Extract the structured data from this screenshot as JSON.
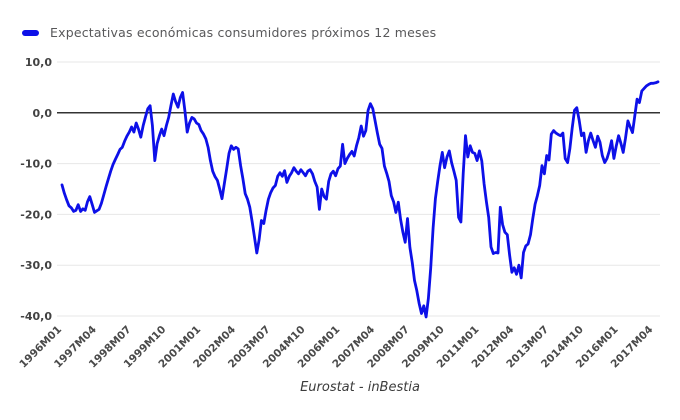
{
  "chart_data": {
    "type": "line",
    "legend": "Expectativas económicas consumidores próximos 12 meses",
    "source_label": "Eurostat - inBestia",
    "grid": true,
    "legend_position": "top-left",
    "colors": {
      "line": "#0d10e8",
      "zero_line": "#333333",
      "grid_line": "#e7e7e7",
      "y_label": "#424242",
      "x_label": "#4a4a4a"
    },
    "y_axis": {
      "min": -40,
      "max": 10,
      "ticks": [
        {
          "label": "10,0",
          "value": 10
        },
        {
          "label": "0,0",
          "value": 0
        },
        {
          "label": "-10,0",
          "value": -10
        },
        {
          "label": "-20,0",
          "value": -20
        },
        {
          "label": "-30,0",
          "value": -30
        },
        {
          "label": "-40,0",
          "value": -40
        }
      ]
    },
    "x_axis": {
      "start": "1996M01",
      "end": "2017M06",
      "frequency": "monthly",
      "ticks": [
        {
          "label": "1996M01",
          "month_index": 0
        },
        {
          "label": "1997M04",
          "month_index": 15
        },
        {
          "label": "1998M07",
          "month_index": 30
        },
        {
          "label": "1999M10",
          "month_index": 45
        },
        {
          "label": "2001M01",
          "month_index": 60
        },
        {
          "label": "2002M04",
          "month_index": 75
        },
        {
          "label": "2003M07",
          "month_index": 90
        },
        {
          "label": "2004M10",
          "month_index": 105
        },
        {
          "label": "2006M01",
          "month_index": 120
        },
        {
          "label": "2007M04",
          "month_index": 135
        },
        {
          "label": "2008M07",
          "month_index": 150
        },
        {
          "label": "2009M10",
          "month_index": 165
        },
        {
          "label": "2011M01",
          "month_index": 180
        },
        {
          "label": "2012M04",
          "month_index": 195
        },
        {
          "label": "2013M07",
          "month_index": 210
        },
        {
          "label": "2014M10",
          "month_index": 225
        },
        {
          "label": "2016M01",
          "month_index": 240
        },
        {
          "label": "2017M04",
          "month_index": 255
        }
      ]
    },
    "series": [
      {
        "name": "Expectativas económicas consumidores próximos 12 meses",
        "color": "#0d10e8",
        "values": [
          -14.2,
          -15.8,
          -17.1,
          -18.3,
          -18.7,
          -19.4,
          -19.2,
          -18.1,
          -19.4,
          -18.9,
          -19.2,
          -17.5,
          -16.5,
          -18.0,
          -19.6,
          -19.3,
          -19.0,
          -17.8,
          -16.2,
          -14.5,
          -13.0,
          -11.5,
          -10.2,
          -9.2,
          -8.2,
          -7.2,
          -6.8,
          -5.6,
          -4.6,
          -3.8,
          -2.8,
          -3.8,
          -2.0,
          -3.2,
          -4.8,
          -2.5,
          -0.8,
          0.8,
          1.4,
          -2.5,
          -9.4,
          -6.1,
          -4.5,
          -3.2,
          -4.5,
          -2.5,
          -0.9,
          1.5,
          3.7,
          2.2,
          1.1,
          3.0,
          4.0,
          0.4,
          -3.8,
          -2.0,
          -0.9,
          -1.2,
          -2.0,
          -2.3,
          -3.5,
          -4.2,
          -5.1,
          -6.8,
          -9.4,
          -11.5,
          -12.6,
          -13.3,
          -15.0,
          -16.9,
          -14.0,
          -11.0,
          -8.0,
          -6.5,
          -7.2,
          -6.8,
          -7.1,
          -10.4,
          -13.0,
          -15.9,
          -17.0,
          -18.6,
          -21.5,
          -24.5,
          -27.6,
          -25.0,
          -21.2,
          -21.8,
          -19.2,
          -17.0,
          -15.7,
          -14.8,
          -14.3,
          -12.5,
          -11.8,
          -12.5,
          -11.4,
          -13.7,
          -12.5,
          -11.8,
          -10.8,
          -11.5,
          -12.0,
          -11.2,
          -11.8,
          -12.4,
          -11.5,
          -11.2,
          -12.0,
          -13.5,
          -14.6,
          -19.0,
          -15.0,
          -16.5,
          -17.0,
          -13.5,
          -12.0,
          -11.5,
          -12.4,
          -11.0,
          -10.5,
          -6.2,
          -10.0,
          -9.0,
          -8.2,
          -7.6,
          -8.5,
          -6.5,
          -4.9,
          -2.6,
          -4.6,
          -3.5,
          0.5,
          1.8,
          0.8,
          -1.6,
          -4.0,
          -6.2,
          -7.0,
          -10.5,
          -11.9,
          -13.5,
          -16.3,
          -17.5,
          -19.6,
          -17.6,
          -21.0,
          -23.5,
          -25.5,
          -20.8,
          -26.5,
          -29.4,
          -33.0,
          -35.0,
          -37.5,
          -39.5,
          -38.0,
          -40.2,
          -36.5,
          -30.6,
          -22.7,
          -16.9,
          -13.5,
          -10.4,
          -7.8,
          -10.8,
          -8.7,
          -7.5,
          -9.8,
          -11.5,
          -13.3,
          -20.6,
          -21.5,
          -12.0,
          -4.5,
          -8.7,
          -6.5,
          -7.8,
          -8.0,
          -9.4,
          -7.5,
          -9.5,
          -14.0,
          -17.5,
          -20.6,
          -26.4,
          -27.7,
          -27.5,
          -27.6,
          -18.6,
          -22.0,
          -23.5,
          -24.0,
          -28.0,
          -31.4,
          -30.5,
          -31.8,
          -30.0,
          -32.5,
          -27.5,
          -26.2,
          -25.8,
          -24.0,
          -20.8,
          -18.0,
          -16.3,
          -14.3,
          -10.4,
          -12.0,
          -8.4,
          -9.3,
          -4.2,
          -3.5,
          -4.0,
          -4.3,
          -4.5,
          -4.0,
          -9.0,
          -9.8,
          -7.0,
          -3.0,
          0.5,
          1.0,
          -1.5,
          -4.5,
          -4.0,
          -7.8,
          -5.5,
          -4.0,
          -5.5,
          -6.8,
          -4.6,
          -5.8,
          -8.4,
          -9.8,
          -9.0,
          -7.5,
          -5.5,
          -9.0,
          -6.5,
          -4.5,
          -6.0,
          -7.8,
          -5.0,
          -1.6,
          -2.8,
          -3.9,
          -0.6,
          2.7,
          2.0,
          4.3,
          4.8,
          5.3,
          5.6,
          5.8,
          5.8,
          5.9,
          6.1
        ]
      }
    ]
  }
}
